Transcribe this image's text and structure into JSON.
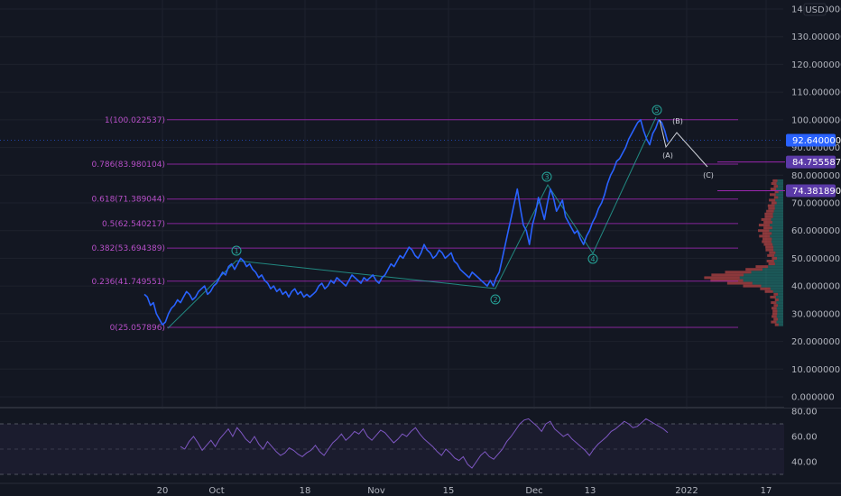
{
  "currency": "USD",
  "colors": {
    "background": "#131722",
    "price_line": "#2962ff",
    "fib": "#9c27b0",
    "fib_label": "#b74fc8",
    "wave": "#26a69a",
    "rsi": "#7e57c2",
    "current_tag": "#2962ff",
    "level_tag": "#5b3aa8",
    "vp_up": "#26a69a",
    "vp_down": "#ef5350"
  },
  "price_axis": {
    "ticks": [
      "140.000000",
      "130.000000",
      "120.000000",
      "110.000000",
      "100.000000",
      "90.000000",
      "80.000000",
      "70.000000",
      "60.000000",
      "50.000000",
      "40.000000",
      "30.000000",
      "20.000000",
      "10.000000",
      "0.000000"
    ],
    "current_price": "92.640000",
    "level_tags": [
      "84.755587",
      "74.381890"
    ]
  },
  "rsi_axis": {
    "ticks": [
      "80.00",
      "60.00",
      "40.00"
    ]
  },
  "time_axis": {
    "labels": [
      "20",
      "Oct",
      "18",
      "Nov",
      "15",
      "Dec",
      "13",
      "2022",
      "17"
    ]
  },
  "fib_levels": [
    {
      "label": "1(100.022537)",
      "value": 100.02
    },
    {
      "label": "0.786(83.980104)",
      "value": 83.98
    },
    {
      "label": "0.618(71.389044)",
      "value": 71.39
    },
    {
      "label": "0.5(62.540217)",
      "value": 62.54
    },
    {
      "label": "0.382(53.694389)",
      "value": 53.69
    },
    {
      "label": "0.236(41.749551)",
      "value": 41.75
    },
    {
      "label": "0(25.057896)",
      "value": 25.06
    }
  ],
  "wave_labels": [
    "1",
    "2",
    "3",
    "4",
    "5",
    "A",
    "B",
    "C"
  ],
  "chart_data": {
    "type": "line",
    "series": [
      {
        "values": [
          37,
          36,
          33,
          34,
          30,
          28,
          26,
          27,
          30,
          32,
          33,
          35,
          34,
          36,
          38,
          37,
          35,
          36,
          38,
          39,
          40,
          37,
          38,
          40,
          41,
          43,
          45,
          44,
          47,
          48,
          46,
          48,
          50,
          49,
          47,
          48,
          46,
          45,
          43,
          44,
          42,
          41,
          39,
          40,
          38,
          39,
          37,
          38,
          36,
          38,
          39,
          37,
          38,
          36,
          37,
          36,
          37,
          38,
          40,
          41,
          39,
          40,
          42,
          41,
          43,
          42,
          41,
          40,
          42,
          44,
          43,
          42,
          41,
          43,
          42,
          43,
          44,
          42,
          41,
          43,
          44,
          46,
          48,
          47,
          49,
          51,
          50,
          52,
          54,
          53,
          51,
          50,
          52,
          55,
          53,
          52,
          50,
          51,
          53,
          52,
          50,
          51,
          52,
          49,
          48,
          46,
          45,
          44,
          43,
          45,
          44,
          43,
          42,
          41,
          40,
          42,
          40,
          43,
          45,
          50,
          55,
          60,
          65,
          70,
          75,
          68,
          62,
          60,
          55,
          62,
          66,
          72,
          68,
          64,
          70,
          75,
          72,
          67,
          69,
          71,
          65,
          63,
          61,
          59,
          60,
          57,
          55,
          58,
          60,
          63,
          65,
          68,
          70,
          73,
          77,
          80,
          82,
          85,
          86,
          88,
          90,
          93,
          95,
          97,
          99,
          100,
          96,
          93,
          91,
          95,
          97,
          100,
          99,
          96,
          92
        ],
        "x_range": [
          "2021-09-14",
          "2021-12-27"
        ]
      }
    ],
    "projection": [
      {
        "label": "A",
        "value": 90
      },
      {
        "label": "B",
        "value": 96
      },
      {
        "label": "C",
        "value": 83
      }
    ],
    "rsi": {
      "values": [
        52,
        50,
        56,
        60,
        55,
        49,
        53,
        57,
        52,
        58,
        62,
        66,
        60,
        67,
        63,
        58,
        55,
        60,
        54,
        50,
        56,
        52,
        48,
        45,
        47,
        51,
        49,
        46,
        44,
        47,
        49,
        53,
        48,
        45,
        50,
        55,
        58,
        62,
        57,
        60,
        64,
        62,
        66,
        60,
        57,
        61,
        65,
        63,
        59,
        55,
        58,
        62,
        60,
        64,
        67,
        62,
        58,
        55,
        52,
        48,
        45,
        50,
        47,
        43,
        41,
        44,
        38,
        35,
        40,
        45,
        48,
        44,
        42,
        46,
        50,
        56,
        60,
        65,
        70,
        73,
        74,
        71,
        68,
        64,
        70,
        72,
        66,
        63,
        60,
        62,
        58,
        55,
        52,
        49,
        45,
        50,
        54,
        57,
        60,
        64,
        66,
        69,
        72,
        70,
        67,
        68,
        71,
        74,
        72,
        70,
        68,
        66,
        63
      ],
      "ylim": [
        30,
        80
      ]
    },
    "ylim": [
      0,
      140
    ],
    "grid": true
  }
}
